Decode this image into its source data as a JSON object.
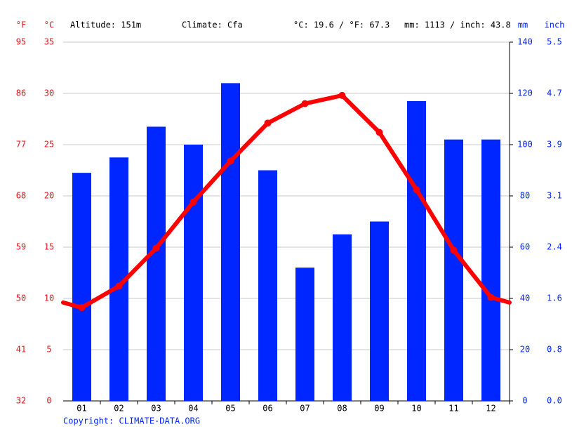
{
  "chart_data": {
    "type": "combo",
    "header": [
      "Altitude: 151m",
      "Climate: Cfa",
      "°C: 19.6 / °F: 67.3",
      "mm: 1113 / inch: 43.8"
    ],
    "copyright": "Copyright: CLIMATE-DATA.ORG",
    "categories": [
      "01",
      "02",
      "03",
      "04",
      "05",
      "06",
      "07",
      "08",
      "09",
      "10",
      "11",
      "12"
    ],
    "series": [
      {
        "name": "mm",
        "type": "bar",
        "axis": "y2",
        "color": "#0026ff",
        "values": [
          89,
          95,
          107,
          100,
          124,
          90,
          52,
          65,
          70,
          117,
          102,
          102
        ]
      },
      {
        "name": "°C",
        "type": "line",
        "color": "#ff0000",
        "values": [
          9.1,
          11.2,
          14.9,
          19.4,
          23.4,
          27.1,
          29.0,
          29.8,
          26.2,
          20.6,
          14.7,
          10.1
        ]
      }
    ],
    "y_unit": "°C",
    "y_color": "#e8141e",
    "ylim": [
      0,
      35
    ],
    "yticks": [
      0,
      5,
      10,
      15,
      20,
      25,
      30,
      35
    ],
    "y2_unit": "mm",
    "y2_color": "#0026ff",
    "y2lim": [
      0,
      140
    ],
    "y2ticks": [
      0,
      20,
      40,
      60,
      80,
      100,
      120,
      140
    ],
    "extra_axes": [
      {
        "unit": "°F",
        "side": "left",
        "color": "#e8141e",
        "lim": [
          32,
          95
        ],
        "ticks": [
          32,
          41,
          50,
          59,
          68,
          77,
          86,
          95
        ]
      },
      {
        "unit": "inch",
        "side": "right",
        "color": "#0026ff",
        "lim": [
          0,
          5.512
        ],
        "ticks": [
          {
            "value": 0,
            "label": "0.0"
          },
          {
            "value": 0.787,
            "label": "0.8"
          },
          {
            "value": 1.575,
            "label": "1.6"
          },
          {
            "value": 2.362,
            "label": "2.4"
          },
          {
            "value": 3.15,
            "label": "3.1"
          },
          {
            "value": 3.937,
            "label": "3.9"
          },
          {
            "value": 4.724,
            "label": "4.7"
          },
          {
            "value": 5.512,
            "label": "5.5"
          }
        ]
      }
    ],
    "grid": true
  }
}
